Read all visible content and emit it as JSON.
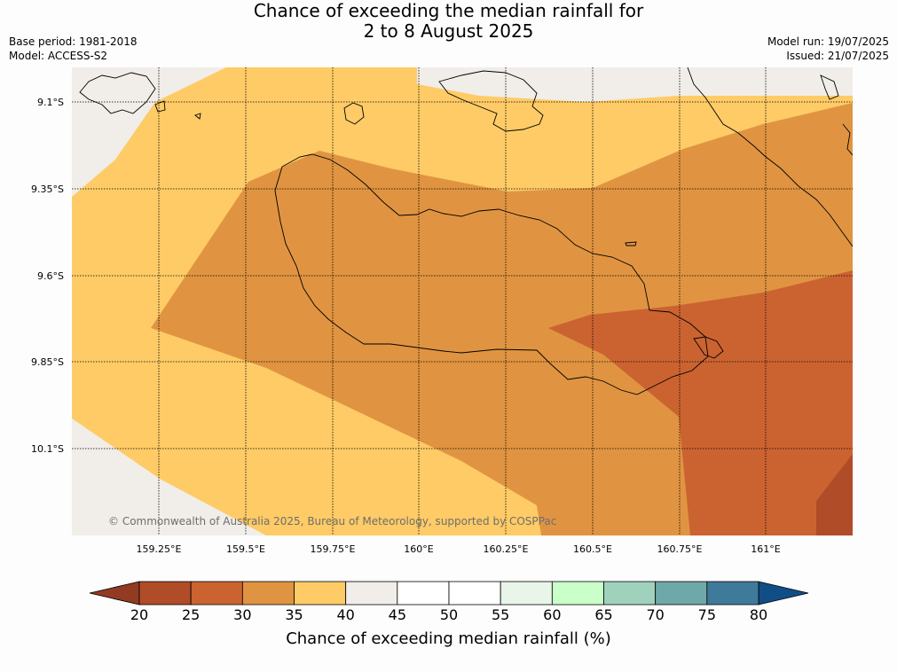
{
  "title": {
    "line1": "Chance of exceeding the median rainfall for",
    "line2": "2 to 8 August 2025"
  },
  "meta": {
    "base_period": "Base period: 1981-2018",
    "model": "Model: ACCESS-S2",
    "model_run": "Model run: 19/07/2025",
    "issued": "Issued: 21/07/2025"
  },
  "map": {
    "lat_labels": [
      "9.1°S",
      "9.35°S",
      "9.6°S",
      "9.85°S",
      "10.1°S"
    ],
    "lon_labels": [
      "159.25°E",
      "159.5°E",
      "159.75°E",
      "160°E",
      "160.25°E",
      "160.5°E",
      "160.75°E",
      "161°E"
    ],
    "copyright": "© Commonwealth of Australia 2025, Bureau of Meteorology, supported by COSPPac",
    "colors": {
      "land_grey": "#f1ede8",
      "c35_40": "#fecb66",
      "c30_35": "#e09441",
      "c25_30": "#cb6331",
      "c20_25": "#b04c27"
    }
  },
  "colorbar": {
    "ticks": [
      "20",
      "25",
      "30",
      "35",
      "40",
      "45",
      "50",
      "55",
      "60",
      "65",
      "70",
      "75",
      "80"
    ],
    "colors": [
      "#b04c27",
      "#cb6331",
      "#e09441",
      "#fecb66",
      "#f1ede8",
      "#ffffff",
      "#ffffff",
      "#e9f5e8",
      "#caffca",
      "#9fd2bc",
      "#6fa8a8",
      "#407a9b"
    ],
    "under_color": "#923a22",
    "over_color": "#124e86",
    "label": "Chance of exceeding median rainfall (%)"
  }
}
